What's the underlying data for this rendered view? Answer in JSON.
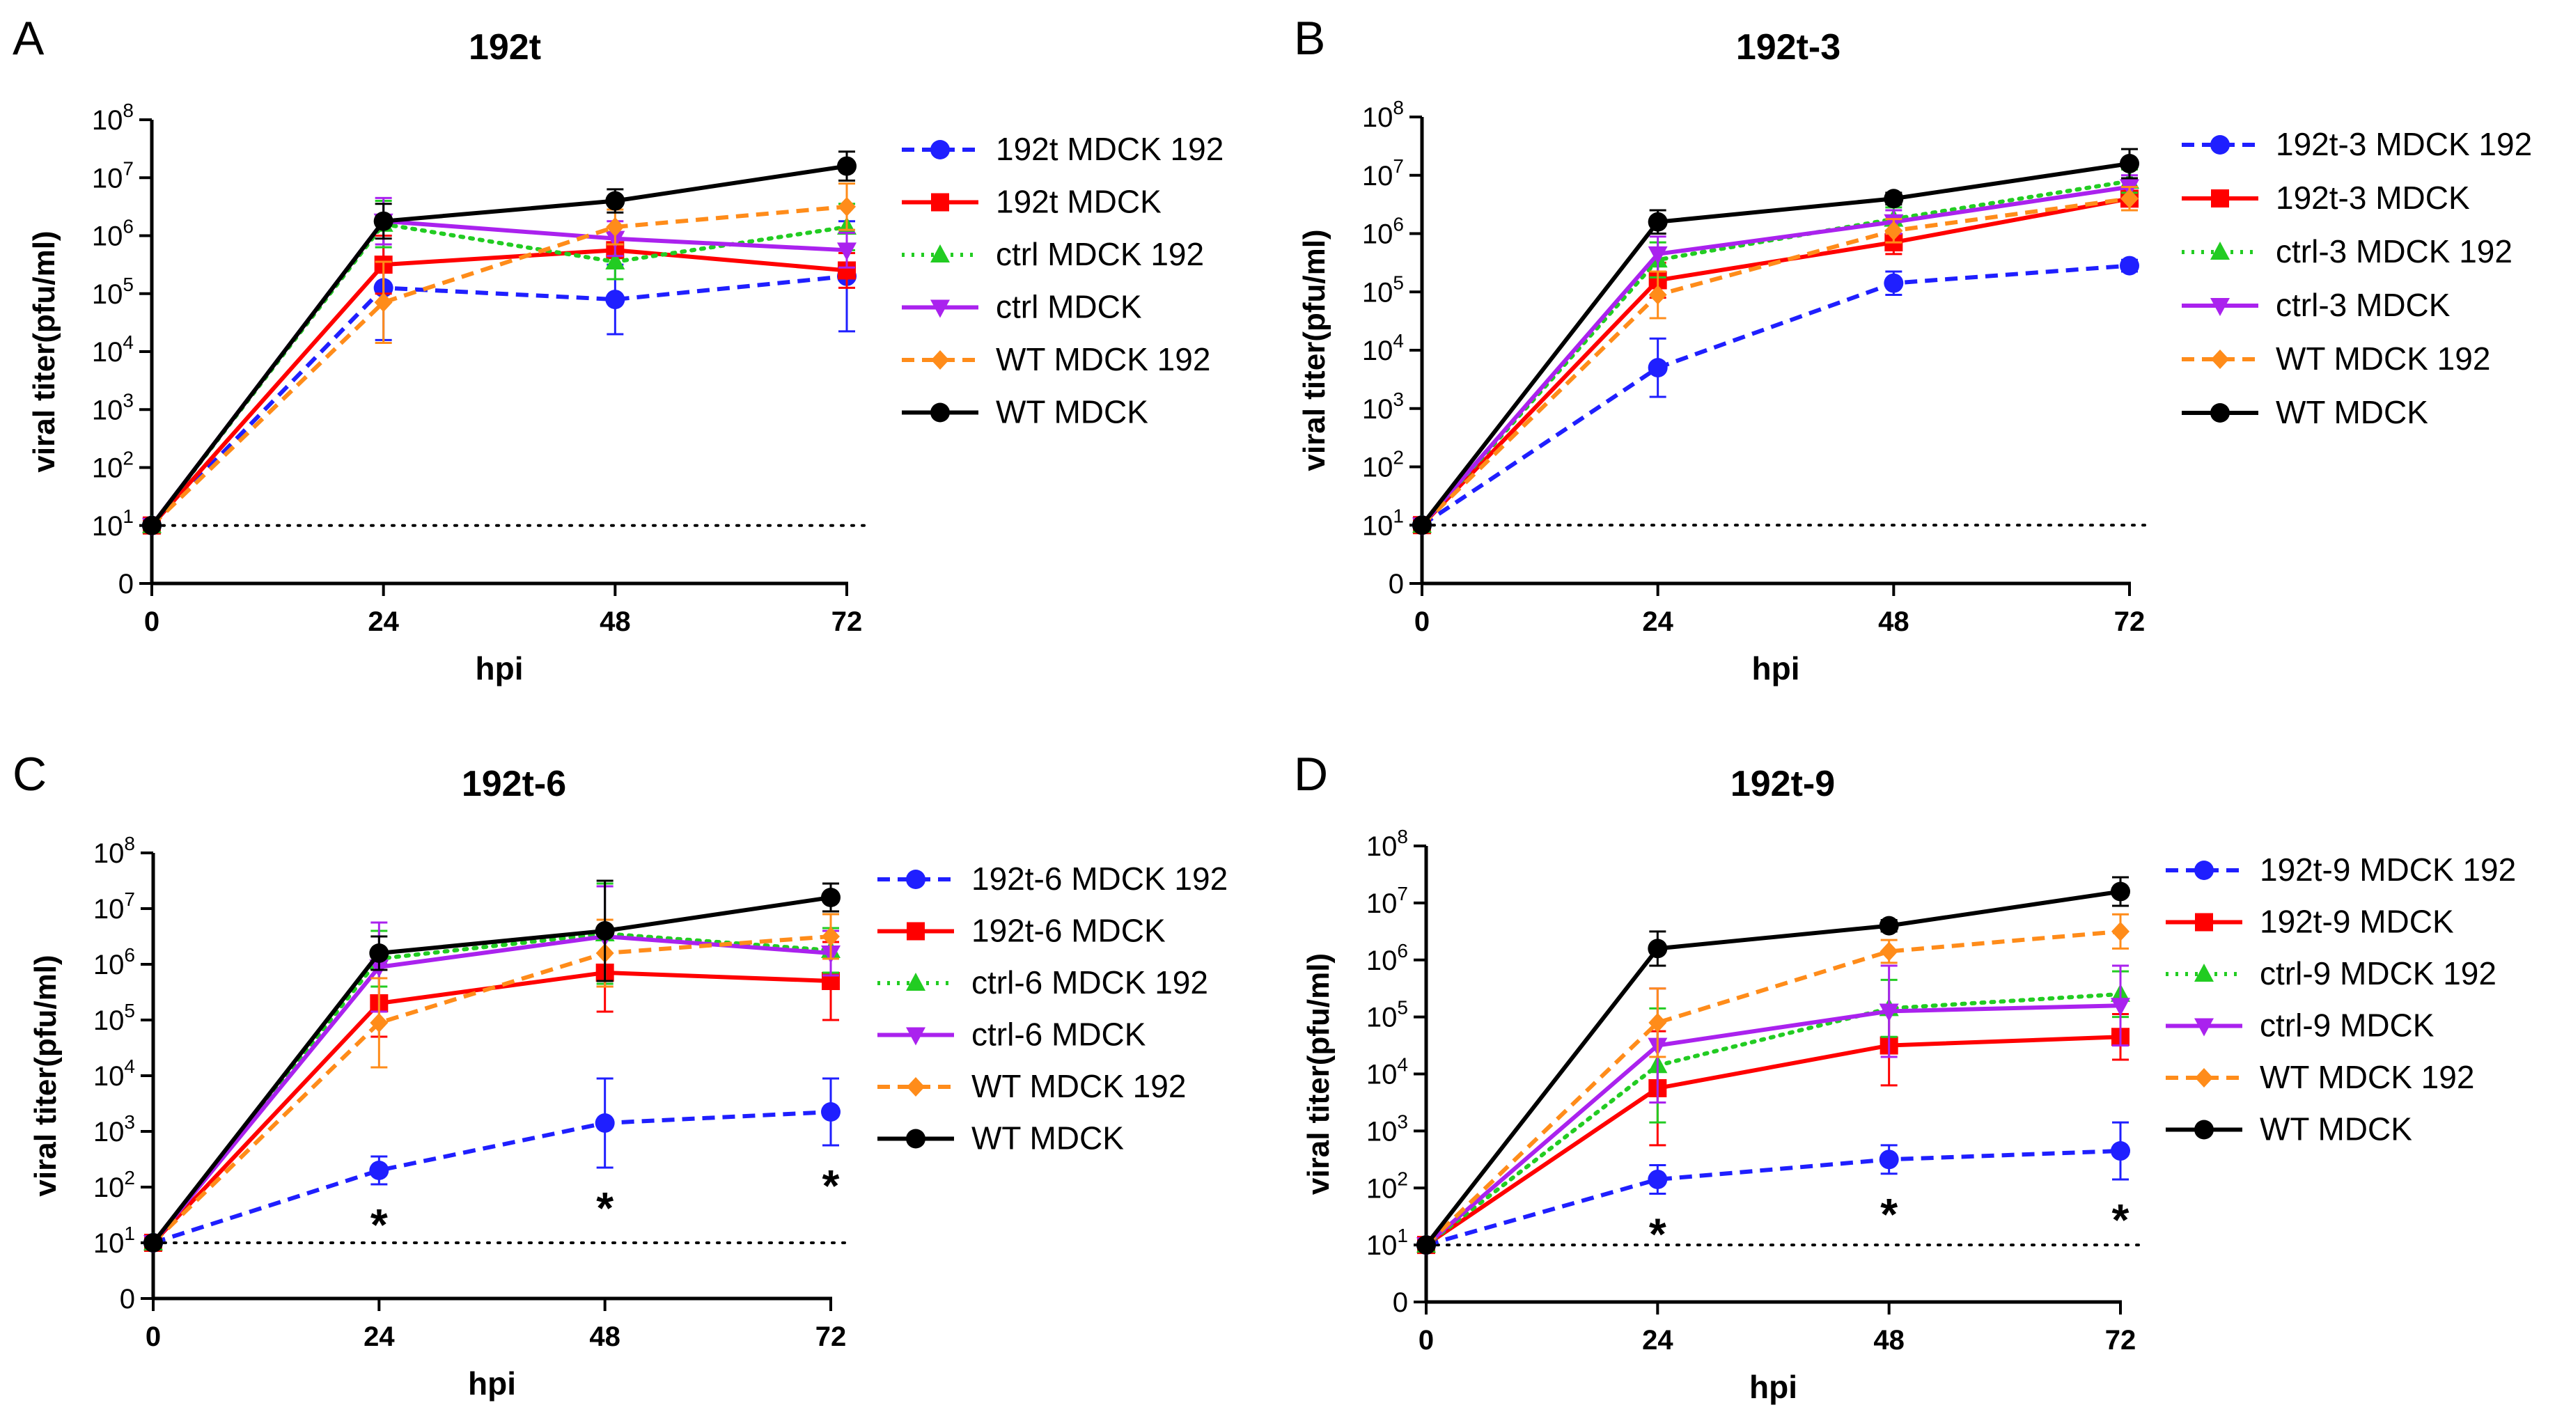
{
  "chart_data": [
    {
      "type": "line",
      "panel_label": "A",
      "title": "192t",
      "xlabel": "hpi",
      "ylabel": "viral titer(pfu/ml)",
      "x": [
        0,
        24,
        48,
        72
      ],
      "xticks": [
        "0",
        "24",
        "48",
        "72"
      ],
      "yticks": [
        {
          "value": 0,
          "base": "0",
          "exp": ""
        },
        {
          "value": 1,
          "base": "10",
          "exp": "1"
        },
        {
          "value": 2,
          "base": "10",
          "exp": "2"
        },
        {
          "value": 3,
          "base": "10",
          "exp": "3"
        },
        {
          "value": 4,
          "base": "10",
          "exp": "4"
        },
        {
          "value": 5,
          "base": "10",
          "exp": "5"
        },
        {
          "value": 6,
          "base": "10",
          "exp": "6"
        },
        {
          "value": 7,
          "base": "10",
          "exp": "7"
        },
        {
          "value": 8,
          "base": "10",
          "exp": "8"
        }
      ],
      "ylim": [
        0,
        8
      ],
      "detection_limit": 1,
      "annotations": [],
      "series": [
        {
          "name": "192t MDCK 192",
          "color": "#1f1fff",
          "dash": "dashed",
          "marker": "circle",
          "values": [
            1,
            5.1,
            4.9,
            5.3
          ],
          "err": [
            0,
            0.9,
            0.6,
            0.95
          ]
        },
        {
          "name": "192t MDCK",
          "color": "#ff0000",
          "dash": "solid",
          "marker": "square",
          "values": [
            1,
            5.5,
            5.75,
            5.4
          ],
          "err": [
            0,
            0.5,
            0.3,
            0.3
          ]
        },
        {
          "name": "ctrl  MDCK 192",
          "color": "#22cc22",
          "dash": "dotted",
          "marker": "triangle-up",
          "values": [
            1,
            6.2,
            5.55,
            6.15
          ],
          "err": [
            0,
            0.4,
            0.3,
            0.4
          ]
        },
        {
          "name": "ctrl  MDCK",
          "color": "#aa22ee",
          "dash": "solid",
          "marker": "triangle-down",
          "values": [
            1,
            6.25,
            5.95,
            5.75
          ],
          "err": [
            0,
            0.4,
            0.3,
            0.3
          ]
        },
        {
          "name": "WT MDCK 192",
          "color": "#ff8c1a",
          "dash": "dashed",
          "marker": "diamond",
          "values": [
            1,
            4.85,
            6.15,
            6.5
          ],
          "err": [
            0,
            0.7,
            0.3,
            0.4
          ]
        },
        {
          "name": "WT MDCK",
          "color": "#000000",
          "dash": "solid",
          "marker": "circle",
          "values": [
            1,
            6.25,
            6.6,
            7.2
          ],
          "err": [
            0,
            0.3,
            0.2,
            0.25
          ]
        }
      ]
    },
    {
      "type": "line",
      "panel_label": "B",
      "title": "192t-3",
      "xlabel": "hpi",
      "ylabel": "viral titer(pfu/ml)",
      "x": [
        0,
        24,
        48,
        72
      ],
      "xticks": [
        "0",
        "24",
        "48",
        "72"
      ],
      "yticks": [
        {
          "value": 0,
          "base": "0",
          "exp": ""
        },
        {
          "value": 1,
          "base": "10",
          "exp": "1"
        },
        {
          "value": 2,
          "base": "10",
          "exp": "2"
        },
        {
          "value": 3,
          "base": "10",
          "exp": "3"
        },
        {
          "value": 4,
          "base": "10",
          "exp": "4"
        },
        {
          "value": 5,
          "base": "10",
          "exp": "5"
        },
        {
          "value": 6,
          "base": "10",
          "exp": "6"
        },
        {
          "value": 7,
          "base": "10",
          "exp": "7"
        },
        {
          "value": 8,
          "base": "10",
          "exp": "8"
        }
      ],
      "ylim": [
        0,
        8
      ],
      "detection_limit": 1,
      "annotations": [],
      "series": [
        {
          "name": "192t-3 MDCK 192",
          "color": "#1f1fff",
          "dash": "dashed",
          "marker": "circle",
          "values": [
            1,
            3.7,
            5.15,
            5.45
          ],
          "err": [
            0,
            0.5,
            0.2,
            0.1
          ]
        },
        {
          "name": "192t-3 MDCK",
          "color": "#ff0000",
          "dash": "solid",
          "marker": "square",
          "values": [
            1,
            5.2,
            5.85,
            6.6
          ],
          "err": [
            0,
            0.3,
            0.2,
            0.2
          ]
        },
        {
          "name": "ctrl-3 MDCK 192",
          "color": "#22cc22",
          "dash": "dotted",
          "marker": "triangle-up",
          "values": [
            1,
            5.55,
            6.25,
            6.9
          ],
          "err": [
            0,
            0.3,
            0.2,
            0.2
          ]
        },
        {
          "name": "ctrl-3 MDCK",
          "color": "#aa22ee",
          "dash": "solid",
          "marker": "triangle-down",
          "values": [
            1,
            5.65,
            6.2,
            6.8
          ],
          "err": [
            0,
            0.3,
            0.2,
            0.2
          ]
        },
        {
          "name": "WT MDCK 192",
          "color": "#ff8c1a",
          "dash": "dashed",
          "marker": "diamond",
          "values": [
            1,
            4.95,
            6.05,
            6.6
          ],
          "err": [
            0,
            0.4,
            0.2,
            0.2
          ]
        },
        {
          "name": "WT MDCK",
          "color": "#000000",
          "dash": "solid",
          "marker": "circle",
          "values": [
            1,
            6.2,
            6.6,
            7.2
          ],
          "err": [
            0,
            0.2,
            0.1,
            0.25
          ]
        }
      ]
    },
    {
      "type": "line",
      "panel_label": "C",
      "title": "192t-6",
      "xlabel": "hpi",
      "ylabel": "viral titer(pfu/ml)",
      "x": [
        0,
        24,
        48,
        72
      ],
      "xticks": [
        "0",
        "24",
        "48",
        "72"
      ],
      "yticks": [
        {
          "value": 0,
          "base": "0",
          "exp": ""
        },
        {
          "value": 1,
          "base": "10",
          "exp": "1"
        },
        {
          "value": 2,
          "base": "10",
          "exp": "2"
        },
        {
          "value": 3,
          "base": "10",
          "exp": "3"
        },
        {
          "value": 4,
          "base": "10",
          "exp": "4"
        },
        {
          "value": 5,
          "base": "10",
          "exp": "5"
        },
        {
          "value": 6,
          "base": "10",
          "exp": "6"
        },
        {
          "value": 7,
          "base": "10",
          "exp": "7"
        },
        {
          "value": 8,
          "base": "10",
          "exp": "8"
        }
      ],
      "ylim": [
        0,
        8
      ],
      "detection_limit": 1,
      "annotations": [
        {
          "x": 24,
          "text": "*"
        },
        {
          "x": 48,
          "text": "*"
        },
        {
          "x": 72,
          "text": "*"
        }
      ],
      "series": [
        {
          "name": "192t-6  MDCK 192",
          "color": "#1f1fff",
          "dash": "dashed",
          "marker": "circle",
          "values": [
            1,
            2.3,
            3.15,
            3.35
          ],
          "err": [
            0,
            0.25,
            0.8,
            0.6
          ]
        },
        {
          "name": "192t-6 MDCK",
          "color": "#ff0000",
          "dash": "solid",
          "marker": "square",
          "values": [
            1,
            5.3,
            5.85,
            5.7
          ],
          "err": [
            0,
            0.6,
            0.7,
            0.7
          ]
        },
        {
          "name": "ctrl-6  MDCK 192",
          "color": "#22cc22",
          "dash": "dotted",
          "marker": "triangle-up",
          "values": [
            1,
            6.1,
            6.55,
            6.25
          ],
          "err": [
            0,
            0.5,
            0.9,
            0.4
          ]
        },
        {
          "name": "ctrl-6  MDCK",
          "color": "#aa22ee",
          "dash": "solid",
          "marker": "triangle-down",
          "values": [
            1,
            5.95,
            6.5,
            6.2
          ],
          "err": [
            0,
            0.8,
            0.9,
            0.4
          ]
        },
        {
          "name": "WT MDCK 192",
          "color": "#ff8c1a",
          "dash": "dashed",
          "marker": "diamond",
          "values": [
            1,
            4.95,
            6.2,
            6.5
          ],
          "err": [
            0,
            0.8,
            0.6,
            0.4
          ]
        },
        {
          "name": "WT MDCK",
          "color": "#000000",
          "dash": "solid",
          "marker": "circle",
          "values": [
            1,
            6.2,
            6.6,
            7.2
          ],
          "err": [
            0,
            0.3,
            0.9,
            0.25
          ]
        }
      ]
    },
    {
      "type": "line",
      "panel_label": "D",
      "title": "192t-9",
      "xlabel": "hpi",
      "ylabel": "viral titer(pfu/ml)",
      "x": [
        0,
        24,
        48,
        72
      ],
      "xticks": [
        "0",
        "24",
        "48",
        "72"
      ],
      "yticks": [
        {
          "value": 0,
          "base": "0",
          "exp": ""
        },
        {
          "value": 1,
          "base": "10",
          "exp": "1"
        },
        {
          "value": 2,
          "base": "10",
          "exp": "2"
        },
        {
          "value": 3,
          "base": "10",
          "exp": "3"
        },
        {
          "value": 4,
          "base": "10",
          "exp": "4"
        },
        {
          "value": 5,
          "base": "10",
          "exp": "5"
        },
        {
          "value": 6,
          "base": "10",
          "exp": "6"
        },
        {
          "value": 7,
          "base": "10",
          "exp": "7"
        },
        {
          "value": 8,
          "base": "10",
          "exp": "8"
        }
      ],
      "ylim": [
        0,
        8
      ],
      "detection_limit": 1,
      "annotations": [
        {
          "x": 24,
          "text": "*"
        },
        {
          "x": 48,
          "text": "*"
        },
        {
          "x": 72,
          "text": "*"
        }
      ],
      "series": [
        {
          "name": "192t-9  MDCK 192",
          "color": "#1f1fff",
          "dash": "dashed",
          "marker": "circle",
          "values": [
            1,
            2.15,
            2.5,
            2.65
          ],
          "err": [
            0,
            0.25,
            0.25,
            0.5
          ]
        },
        {
          "name": "192t-9  MDCK",
          "color": "#ff0000",
          "dash": "solid",
          "marker": "square",
          "values": [
            1,
            3.75,
            4.5,
            4.65
          ],
          "err": [
            0,
            1.0,
            0.7,
            0.4
          ]
        },
        {
          "name": "ctrl-9  MDCK 192",
          "color": "#22cc22",
          "dash": "dotted",
          "marker": "triangle-up",
          "values": [
            1,
            4.15,
            5.15,
            5.4
          ],
          "err": [
            0,
            1.0,
            0.5,
            0.4
          ]
        },
        {
          "name": "ctrl-9  MDCK",
          "color": "#aa22ee",
          "dash": "solid",
          "marker": "triangle-down",
          "values": [
            1,
            4.5,
            5.1,
            5.2
          ],
          "err": [
            0,
            1.0,
            0.8,
            0.7
          ]
        },
        {
          "name": "WT MDCK 192",
          "color": "#ff8c1a",
          "dash": "dashed",
          "marker": "diamond",
          "values": [
            1,
            4.9,
            6.15,
            6.5
          ],
          "err": [
            0,
            0.6,
            0.2,
            0.3
          ]
        },
        {
          "name": "WT MDCK",
          "color": "#000000",
          "dash": "solid",
          "marker": "circle",
          "values": [
            1,
            6.2,
            6.6,
            7.2
          ],
          "err": [
            0,
            0.3,
            0.1,
            0.25
          ]
        }
      ]
    }
  ]
}
